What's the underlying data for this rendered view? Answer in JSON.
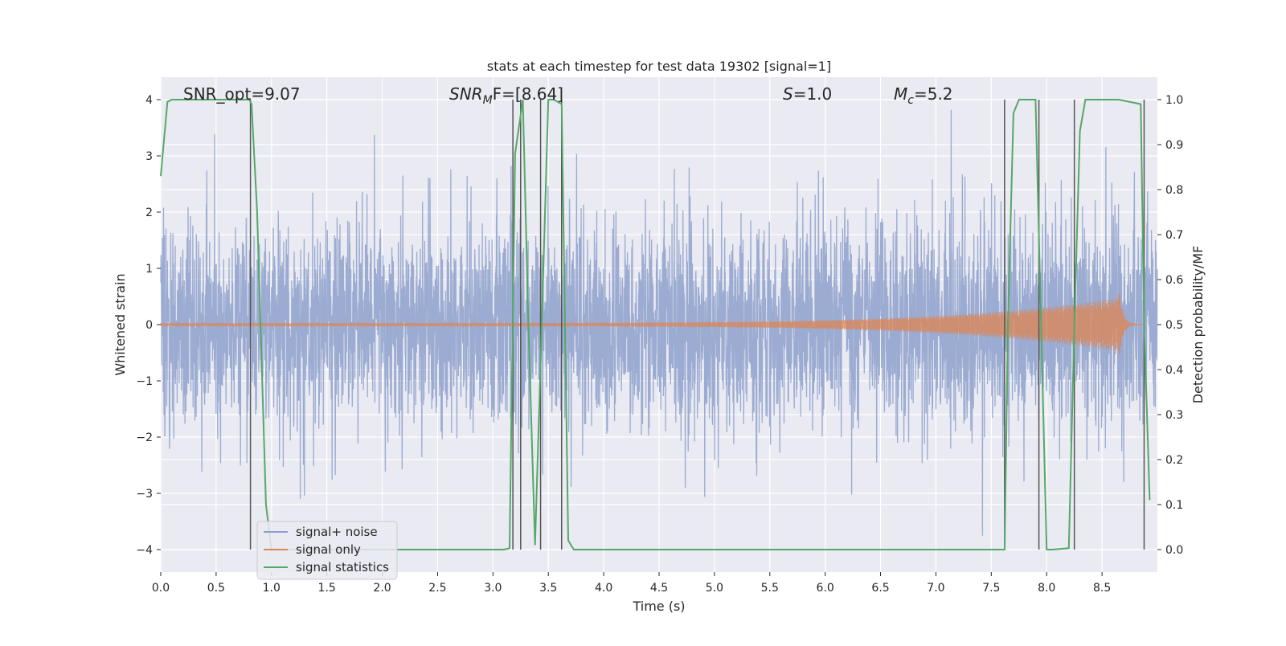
{
  "chart_data": {
    "type": "line",
    "title": "stats at each timestep for test data 19302 [signal=1]",
    "xlabel": "Time (s)",
    "ylabel": "Whitened strain",
    "y2label": "Detection probability/MF",
    "xlim": [
      0.0,
      9.0
    ],
    "ylim": [
      -4.4,
      4.4
    ],
    "y2lim": [
      -0.05,
      1.05
    ],
    "xticks": [
      0.0,
      0.5,
      1.0,
      1.5,
      2.0,
      2.5,
      3.0,
      3.5,
      4.0,
      4.5,
      5.0,
      5.5,
      6.0,
      6.5,
      7.0,
      7.5,
      8.0,
      8.5
    ],
    "xtick_labels": [
      "0.0",
      "0.5",
      "1.0",
      "1.5",
      "2.0",
      "2.5",
      "3.0",
      "3.5",
      "4.0",
      "4.5",
      "5.0",
      "5.5",
      "6.0",
      "6.5",
      "7.0",
      "7.5",
      "8.0",
      "8.5"
    ],
    "yticks": [
      -4,
      -3,
      -2,
      -1,
      0,
      1,
      2,
      3,
      4
    ],
    "ytick_labels": [
      "−4",
      "−3",
      "−2",
      "−1",
      "0",
      "1",
      "2",
      "3",
      "4"
    ],
    "y2ticks": [
      0.0,
      0.1,
      0.2,
      0.3,
      0.4,
      0.5,
      0.6,
      0.7,
      0.8,
      0.9,
      1.0
    ],
    "y2tick_labels": [
      "0.0",
      "0.1",
      "0.2",
      "0.3",
      "0.4",
      "0.5",
      "0.6",
      "0.7",
      "0.8",
      "0.9",
      "1.0"
    ],
    "grid": true,
    "legend_position": "lower-left",
    "annotations": {
      "snr_opt": "SNR_opt=9.07",
      "snr_mf_base": "SNR",
      "snr_mf_sub": "M",
      "snr_mf_tail": "F=[8.64]",
      "s_name": "S",
      "s_value": "=1.0",
      "mc_name": "M",
      "mc_sub": "c",
      "mc_value": "=5.2"
    },
    "series": [
      {
        "name": "signal+ noise",
        "color": "#8da0cb",
        "description_kind": "noise",
        "amplitude_std": 0.95,
        "t_end": 9.0
      },
      {
        "name": "signal only",
        "color": "#dd8452",
        "description_kind": "chirp",
        "t_end": 8.88,
        "merger_time": 8.65,
        "peak_amplitude": 0.75
      },
      {
        "name": "signal statistics",
        "color": "#55a868",
        "axis": "right",
        "x": [
          0.0,
          0.06,
          0.1,
          0.8,
          0.82,
          0.87,
          0.95,
          1.0,
          3.1,
          3.15,
          3.2,
          3.27,
          3.32,
          3.38,
          3.44,
          3.5,
          3.55,
          3.62,
          3.68,
          3.73,
          3.8,
          7.62,
          7.65,
          7.7,
          7.75,
          7.9,
          7.95,
          8.0,
          8.05,
          8.2,
          8.25,
          8.3,
          8.35,
          8.55,
          8.65,
          8.85,
          8.88,
          8.93
        ],
        "y": [
          0.83,
          0.995,
          1.0,
          1.0,
          0.99,
          0.75,
          0.1,
          0.0,
          0.0,
          0.003,
          0.88,
          1.0,
          0.5,
          0.01,
          0.5,
          1.0,
          1.0,
          0.99,
          0.02,
          0.0,
          0.0,
          0.0,
          0.5,
          0.97,
          1.0,
          1.0,
          0.5,
          0.0,
          0.0,
          0.003,
          0.5,
          0.93,
          1.0,
          1.0,
          1.0,
          0.99,
          0.5,
          0.11
        ]
      }
    ],
    "vertical_lines": [
      0.81,
      3.18,
      3.25,
      3.43,
      3.62,
      7.62,
      7.93,
      8.25,
      8.88
    ],
    "vertical_line_color": "#555555"
  }
}
